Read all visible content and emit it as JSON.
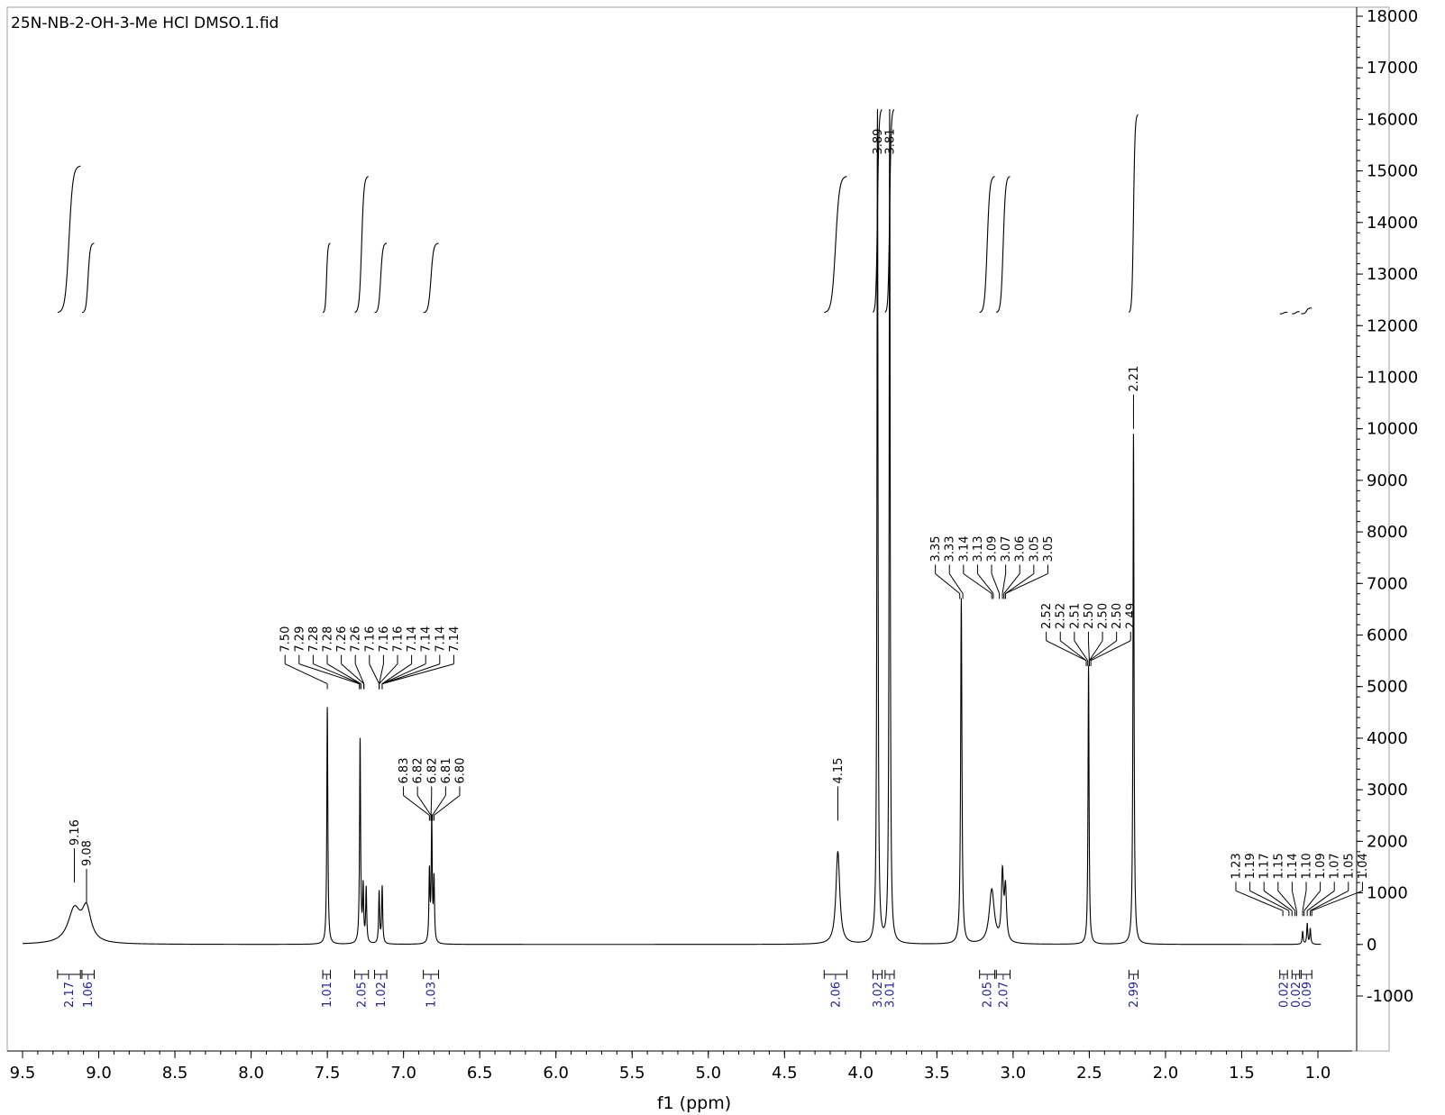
{
  "chart_data": {
    "type": "line",
    "title": "25N-NB-2-OH-3-Me HCl  DMSO.1.fid",
    "xlabel": "f1 (ppm)",
    "ylabel": "",
    "xlim": [
      9.5,
      1.0
    ],
    "ylim": [
      -1000,
      18000
    ],
    "x_ticks": [
      "9.5",
      "9.0",
      "8.5",
      "8.0",
      "7.5",
      "7.0",
      "6.5",
      "6.0",
      "5.5",
      "5.0",
      "4.5",
      "4.0",
      "3.5",
      "3.0",
      "2.5",
      "2.0",
      "1.5",
      "1.0"
    ],
    "y_ticks": [
      "18000",
      "17000",
      "16000",
      "15000",
      "14000",
      "13000",
      "12000",
      "11000",
      "10000",
      "9000",
      "8000",
      "7000",
      "6000",
      "5000",
      "4000",
      "3000",
      "2000",
      "1000",
      "0",
      "-1000"
    ],
    "series": [
      {
        "peaks": [
          {
            "x": 9.16,
            "y": 650,
            "w": 0.05
          },
          {
            "x": 9.08,
            "y": 620,
            "w": 0.035
          },
          {
            "x": 7.5,
            "y": 4600,
            "w": 0.004
          },
          {
            "x": 7.285,
            "y": 3950,
            "w": 0.004
          },
          {
            "x": 7.265,
            "y": 1050,
            "w": 0.004
          },
          {
            "x": 7.245,
            "y": 1050,
            "w": 0.004
          },
          {
            "x": 7.16,
            "y": 1000,
            "w": 0.004
          },
          {
            "x": 7.14,
            "y": 1100,
            "w": 0.004
          },
          {
            "x": 6.83,
            "y": 1350,
            "w": 0.004
          },
          {
            "x": 6.815,
            "y": 2350,
            "w": 0.004
          },
          {
            "x": 6.8,
            "y": 1200,
            "w": 0.004
          },
          {
            "x": 4.15,
            "y": 1800,
            "w": 0.015
          },
          {
            "x": 3.89,
            "y": 16200,
            "w": 0.004
          },
          {
            "x": 3.81,
            "y": 16200,
            "w": 0.004
          },
          {
            "x": 3.34,
            "y": 6700,
            "w": 0.005
          },
          {
            "x": 3.14,
            "y": 1050,
            "w": 0.02
          },
          {
            "x": 3.07,
            "y": 1300,
            "w": 0.008
          },
          {
            "x": 3.05,
            "y": 1000,
            "w": 0.008
          },
          {
            "x": 2.505,
            "y": 5400,
            "w": 0.004
          },
          {
            "x": 2.21,
            "y": 9900,
            "w": 0.004
          },
          {
            "x": 1.1,
            "y": 250,
            "w": 0.004
          },
          {
            "x": 1.07,
            "y": 400,
            "w": 0.004
          },
          {
            "x": 1.05,
            "y": 300,
            "w": 0.004
          }
        ]
      }
    ],
    "peak_label_groups": [
      {
        "labels": [
          "9.16"
        ],
        "targets": [
          9.16
        ],
        "bar_y": 1200
      },
      {
        "labels": [
          "9.08"
        ],
        "targets": [
          9.08
        ],
        "bar_y": 800
      },
      {
        "labels": [
          "7.50",
          "7.29",
          "7.28",
          "7.28",
          "7.26",
          "7.26",
          "7.16",
          "7.16",
          "7.16",
          "7.14",
          "7.14",
          "7.14",
          "7.14"
        ],
        "targets": [
          7.5,
          7.29,
          7.28,
          7.28,
          7.26,
          7.26,
          7.16,
          7.16,
          7.16,
          7.14,
          7.14,
          7.14,
          7.14
        ],
        "bar_y": 4950
      },
      {
        "labels": [
          "6.83",
          "6.82",
          "6.82",
          "6.81",
          "6.80"
        ],
        "targets": [
          6.83,
          6.82,
          6.82,
          6.81,
          6.8
        ],
        "bar_y": 2400
      },
      {
        "labels": [
          "4.15"
        ],
        "targets": [
          4.15
        ],
        "bar_y": 2400
      },
      {
        "labels": [
          "3.89"
        ],
        "targets": [
          3.89
        ],
        "bar_y": 14600
      },
      {
        "labels": [
          "3.81"
        ],
        "targets": [
          3.81
        ],
        "bar_y": 14600
      },
      {
        "labels": [
          "3.35",
          "3.33",
          "3.14",
          "3.13",
          "3.09",
          "3.07",
          "3.06",
          "3.05",
          "3.05"
        ],
        "targets": [
          3.35,
          3.33,
          3.14,
          3.13,
          3.09,
          3.07,
          3.06,
          3.05,
          3.05
        ],
        "bar_y": 6700
      },
      {
        "labels": [
          "2.52",
          "2.52",
          "2.51",
          "2.50",
          "2.50",
          "2.50",
          "2.49"
        ],
        "targets": [
          2.52,
          2.52,
          2.51,
          2.5,
          2.5,
          2.5,
          2.49
        ],
        "bar_y": 5400
      },
      {
        "labels": [
          "2.21"
        ],
        "targets": [
          2.21
        ],
        "bar_y": 10000
      },
      {
        "labels": [
          "1.23",
          "1.19",
          "1.17",
          "1.15",
          "1.14",
          "1.10",
          "1.09",
          "1.07",
          "1.05",
          "1.04"
        ],
        "targets": [
          1.23,
          1.19,
          1.17,
          1.15,
          1.14,
          1.1,
          1.09,
          1.07,
          1.05,
          1.04
        ],
        "bar_y": 550
      }
    ],
    "integrals": [
      {
        "from": 9.27,
        "to": 9.12,
        "value": "2.17",
        "curve_low": 12250,
        "curve_high": 15100
      },
      {
        "from": 9.11,
        "to": 9.03,
        "value": "1.06",
        "curve_low": 12250,
        "curve_high": 13600
      },
      {
        "from": 7.53,
        "to": 7.48,
        "value": "1.01",
        "curve_low": 12250,
        "curve_high": 13600
      },
      {
        "from": 7.32,
        "to": 7.23,
        "value": "2.05",
        "curve_low": 12250,
        "curve_high": 14900
      },
      {
        "from": 7.19,
        "to": 7.11,
        "value": "1.02",
        "curve_low": 12250,
        "curve_high": 13600
      },
      {
        "from": 6.87,
        "to": 6.77,
        "value": "1.03",
        "curve_low": 12250,
        "curve_high": 13600
      },
      {
        "from": 4.24,
        "to": 4.09,
        "value": "2.06",
        "curve_low": 12250,
        "curve_high": 14900
      },
      {
        "from": 3.92,
        "to": 3.86,
        "value": "3.02",
        "curve_low": 12250,
        "curve_high": 16200
      },
      {
        "from": 3.84,
        "to": 3.78,
        "value": "3.01",
        "curve_low": 12250,
        "curve_high": 16200
      },
      {
        "from": 3.22,
        "to": 3.12,
        "value": "2.05",
        "curve_low": 12250,
        "curve_high": 14900
      },
      {
        "from": 3.11,
        "to": 3.02,
        "value": "2.07",
        "curve_low": 12250,
        "curve_high": 14900
      },
      {
        "from": 2.24,
        "to": 2.18,
        "value": "2.99",
        "curve_low": 12250,
        "curve_high": 16100
      },
      {
        "from": 1.25,
        "to": 1.2,
        "value": "0.02",
        "curve_low": 12230,
        "curve_high": 12260
      },
      {
        "from": 1.17,
        "to": 1.12,
        "value": "0.02",
        "curve_low": 12230,
        "curve_high": 12270
      },
      {
        "from": 1.11,
        "to": 1.04,
        "value": "0.09",
        "curve_low": 12230,
        "curve_high": 12340
      }
    ],
    "grid": false
  }
}
